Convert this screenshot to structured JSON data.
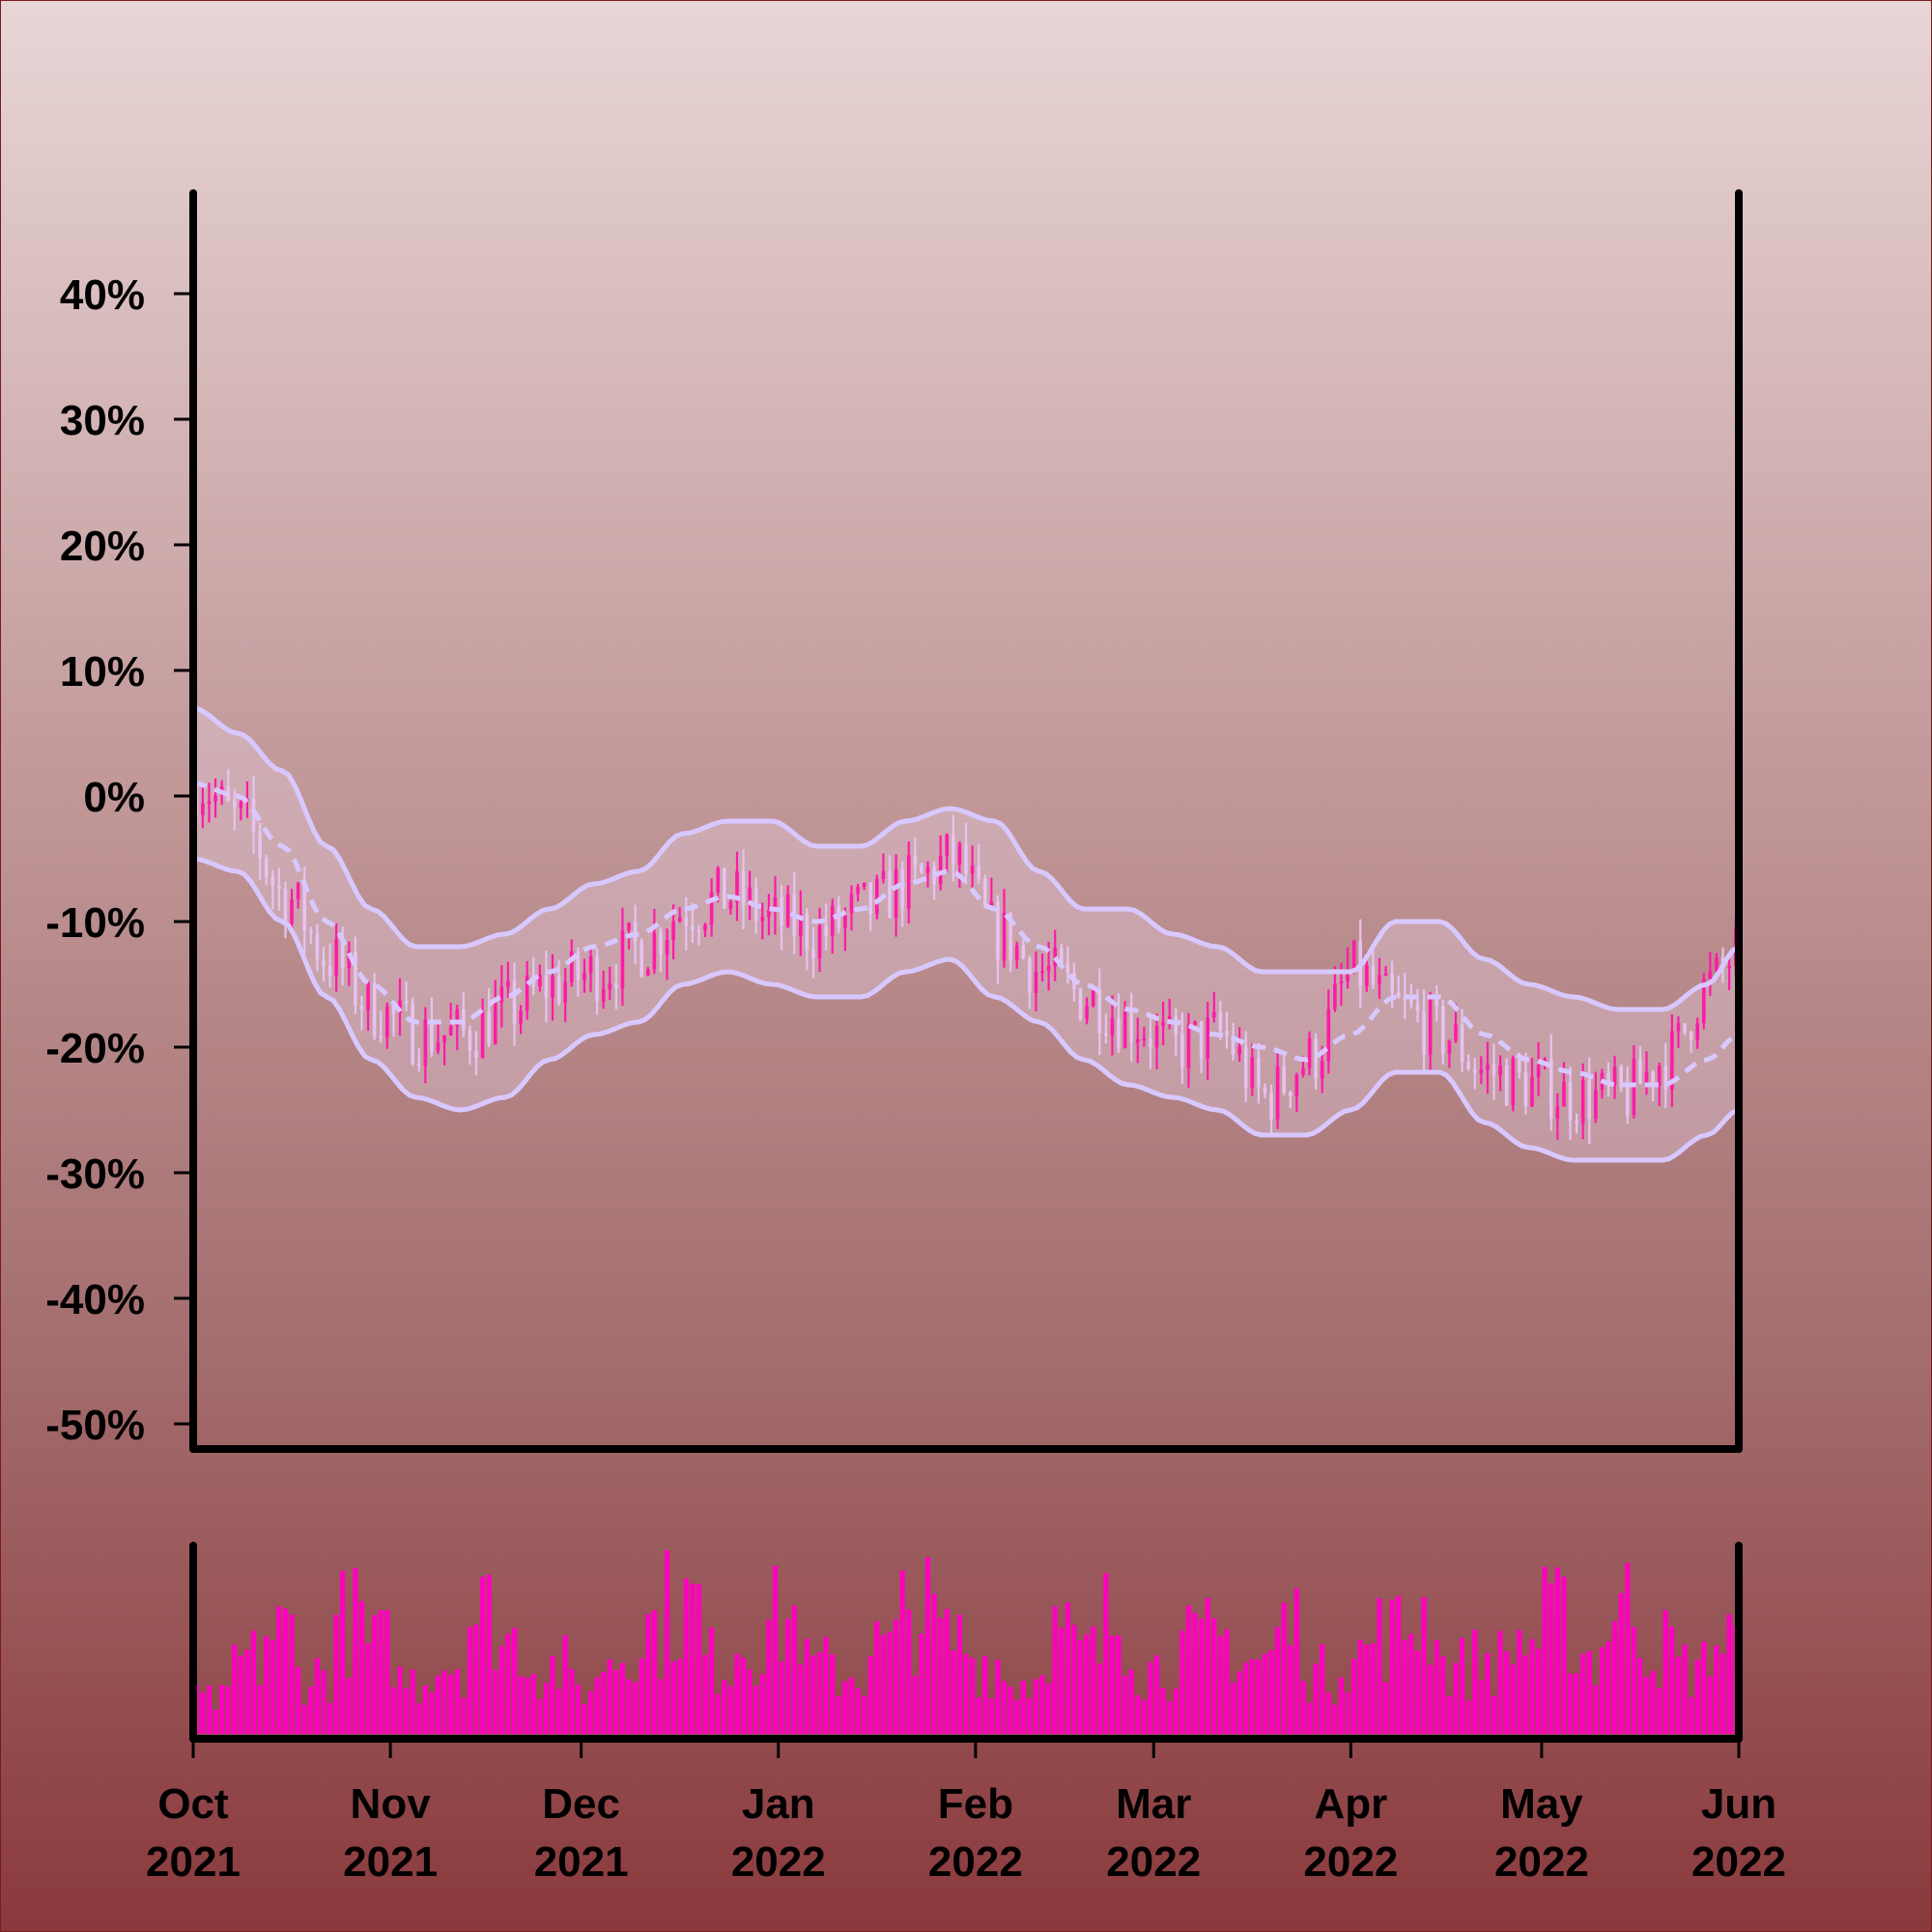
{
  "chart_data": {
    "type": "candlestick",
    "title": "",
    "xlabel": "",
    "ylabel": "",
    "y_unit": "%",
    "ylim": [
      -52,
      48
    ],
    "y_ticks": [
      40,
      30,
      20,
      10,
      0,
      -10,
      -20,
      -30,
      -40,
      -50
    ],
    "y_tick_labels": [
      "40%",
      "30%",
      "20%",
      "10%",
      "0%",
      "-10%",
      "-20%",
      "-30%",
      "-40%",
      "-50%"
    ],
    "x_range": [
      "2021-10-01",
      "2022-06-01"
    ],
    "x_ticks": [
      {
        "date": "2021-10-01",
        "month": "Oct",
        "year": "2021"
      },
      {
        "date": "2021-11-01",
        "month": "Nov",
        "year": "2021"
      },
      {
        "date": "2021-12-01",
        "month": "Dec",
        "year": "2021"
      },
      {
        "date": "2022-01-01",
        "month": "Jan",
        "year": "2022"
      },
      {
        "date": "2022-02-01",
        "month": "Feb",
        "year": "2022"
      },
      {
        "date": "2022-03-01",
        "month": "Mar",
        "year": "2022"
      },
      {
        "date": "2022-04-01",
        "month": "Apr",
        "year": "2022"
      },
      {
        "date": "2022-05-01",
        "month": "May",
        "year": "2022"
      },
      {
        "date": "2022-06-01",
        "month": "Jun",
        "year": "2022"
      }
    ],
    "grid": false,
    "legend": "none",
    "colors": {
      "up_candle": "#ff1aa8",
      "down_candle": "#e6c3f0",
      "bollinger_band": "#d8c8ff",
      "band_fill": "#e8d0e6",
      "volume": "#ff00c0",
      "axis": "#000000"
    },
    "series": [
      {
        "type": "price_close_pct",
        "points": [
          [
            "2021-10-01",
            1
          ],
          [
            "2021-10-08",
            -2
          ],
          [
            "2021-10-15",
            -8
          ],
          [
            "2021-10-22",
            -13
          ],
          [
            "2021-10-29",
            -17
          ],
          [
            "2021-11-05",
            -19
          ],
          [
            "2021-11-12",
            -19
          ],
          [
            "2021-11-19",
            -17
          ],
          [
            "2021-11-26",
            -15
          ],
          [
            "2021-12-03",
            -14
          ],
          [
            "2021-12-10",
            -12
          ],
          [
            "2021-12-17",
            -9
          ],
          [
            "2021-12-24",
            -8
          ],
          [
            "2021-12-31",
            -10
          ],
          [
            "2022-01-07",
            -11
          ],
          [
            "2022-01-14",
            -9
          ],
          [
            "2022-01-21",
            -7
          ],
          [
            "2022-01-28",
            -5
          ],
          [
            "2022-02-04",
            -11
          ],
          [
            "2022-02-11",
            -14
          ],
          [
            "2022-02-18",
            -16
          ],
          [
            "2022-02-25",
            -18
          ],
          [
            "2022-03-04",
            -20
          ],
          [
            "2022-03-11",
            -19
          ],
          [
            "2022-03-18",
            -24
          ],
          [
            "2022-03-25",
            -21
          ],
          [
            "2022-04-01",
            -14
          ],
          [
            "2022-04-08",
            -17
          ],
          [
            "2022-04-15",
            -19
          ],
          [
            "2022-04-22",
            -22
          ],
          [
            "2022-04-29",
            -23
          ],
          [
            "2022-05-06",
            -24
          ],
          [
            "2022-05-13",
            -24
          ],
          [
            "2022-05-20",
            -21
          ],
          [
            "2022-05-27",
            -15
          ],
          [
            "2022-06-01",
            -12
          ]
        ]
      },
      {
        "type": "bollinger_middle",
        "points": [
          [
            "2021-10-01",
            1
          ],
          [
            "2021-10-08",
            0
          ],
          [
            "2021-10-15",
            -4
          ],
          [
            "2021-10-22",
            -10
          ],
          [
            "2021-10-29",
            -15
          ],
          [
            "2021-11-05",
            -18
          ],
          [
            "2021-11-12",
            -18
          ],
          [
            "2021-11-19",
            -16
          ],
          [
            "2021-11-26",
            -14
          ],
          [
            "2021-12-03",
            -12
          ],
          [
            "2021-12-10",
            -11
          ],
          [
            "2021-12-17",
            -9
          ],
          [
            "2021-12-24",
            -8
          ],
          [
            "2021-12-31",
            -9
          ],
          [
            "2022-01-07",
            -10
          ],
          [
            "2022-01-14",
            -9
          ],
          [
            "2022-01-21",
            -7
          ],
          [
            "2022-01-28",
            -6
          ],
          [
            "2022-02-04",
            -9
          ],
          [
            "2022-02-11",
            -12
          ],
          [
            "2022-02-18",
            -15
          ],
          [
            "2022-02-25",
            -17
          ],
          [
            "2022-03-04",
            -18
          ],
          [
            "2022-03-11",
            -19
          ],
          [
            "2022-03-18",
            -20
          ],
          [
            "2022-03-25",
            -21
          ],
          [
            "2022-04-01",
            -19
          ],
          [
            "2022-04-08",
            -16
          ],
          [
            "2022-04-15",
            -16
          ],
          [
            "2022-04-22",
            -19
          ],
          [
            "2022-04-29",
            -21
          ],
          [
            "2022-05-06",
            -22
          ],
          [
            "2022-05-13",
            -23
          ],
          [
            "2022-05-20",
            -23
          ],
          [
            "2022-05-27",
            -21
          ],
          [
            "2022-06-01",
            -19
          ]
        ]
      },
      {
        "type": "bollinger_upper",
        "points": [
          [
            "2021-10-01",
            7
          ],
          [
            "2021-10-08",
            5
          ],
          [
            "2021-10-15",
            2
          ],
          [
            "2021-10-22",
            -4
          ],
          [
            "2021-10-29",
            -9
          ],
          [
            "2021-11-05",
            -12
          ],
          [
            "2021-11-12",
            -12
          ],
          [
            "2021-11-19",
            -11
          ],
          [
            "2021-11-26",
            -9
          ],
          [
            "2021-12-03",
            -7
          ],
          [
            "2021-12-10",
            -6
          ],
          [
            "2021-12-17",
            -3
          ],
          [
            "2021-12-24",
            -2
          ],
          [
            "2021-12-31",
            -2
          ],
          [
            "2022-01-07",
            -4
          ],
          [
            "2022-01-14",
            -4
          ],
          [
            "2022-01-21",
            -2
          ],
          [
            "2022-01-28",
            -1
          ],
          [
            "2022-02-04",
            -2
          ],
          [
            "2022-02-11",
            -6
          ],
          [
            "2022-02-18",
            -9
          ],
          [
            "2022-02-25",
            -9
          ],
          [
            "2022-03-04",
            -11
          ],
          [
            "2022-03-11",
            -12
          ],
          [
            "2022-03-18",
            -14
          ],
          [
            "2022-03-25",
            -14
          ],
          [
            "2022-04-01",
            -14
          ],
          [
            "2022-04-08",
            -10
          ],
          [
            "2022-04-15",
            -10
          ],
          [
            "2022-04-22",
            -13
          ],
          [
            "2022-04-29",
            -15
          ],
          [
            "2022-05-06",
            -16
          ],
          [
            "2022-05-13",
            -17
          ],
          [
            "2022-05-20",
            -17
          ],
          [
            "2022-05-27",
            -15
          ],
          [
            "2022-06-01",
            -12
          ]
        ]
      },
      {
        "type": "bollinger_lower",
        "points": [
          [
            "2021-10-01",
            -5
          ],
          [
            "2021-10-08",
            -6
          ],
          [
            "2021-10-15",
            -10
          ],
          [
            "2021-10-22",
            -16
          ],
          [
            "2021-10-29",
            -21
          ],
          [
            "2021-11-05",
            -24
          ],
          [
            "2021-11-12",
            -25
          ],
          [
            "2021-11-19",
            -24
          ],
          [
            "2021-11-26",
            -21
          ],
          [
            "2021-12-03",
            -19
          ],
          [
            "2021-12-10",
            -18
          ],
          [
            "2021-12-17",
            -15
          ],
          [
            "2021-12-24",
            -14
          ],
          [
            "2021-12-31",
            -15
          ],
          [
            "2022-01-07",
            -16
          ],
          [
            "2022-01-14",
            -16
          ],
          [
            "2022-01-21",
            -14
          ],
          [
            "2022-01-28",
            -13
          ],
          [
            "2022-02-04",
            -16
          ],
          [
            "2022-02-11",
            -18
          ],
          [
            "2022-02-18",
            -21
          ],
          [
            "2022-02-25",
            -23
          ],
          [
            "2022-03-04",
            -24
          ],
          [
            "2022-03-11",
            -25
          ],
          [
            "2022-03-18",
            -27
          ],
          [
            "2022-03-25",
            -27
          ],
          [
            "2022-04-01",
            -25
          ],
          [
            "2022-04-08",
            -22
          ],
          [
            "2022-04-15",
            -22
          ],
          [
            "2022-04-22",
            -26
          ],
          [
            "2022-04-29",
            -28
          ],
          [
            "2022-05-06",
            -29
          ],
          [
            "2022-05-13",
            -29
          ],
          [
            "2022-05-20",
            -29
          ],
          [
            "2022-05-27",
            -27
          ],
          [
            "2022-06-01",
            -25
          ]
        ]
      }
    ],
    "volume_profile": [
      0.25,
      0.55,
      0.75,
      0.45,
      0.85,
      0.65,
      0.4,
      0.55,
      0.9,
      0.7,
      0.5,
      0.35,
      0.6,
      0.8,
      0.95,
      0.55,
      0.7,
      0.85,
      0.5,
      0.45,
      0.65,
      0.9,
      0.7,
      0.55,
      0.4,
      0.75,
      0.6,
      0.85,
      0.5,
      0.65,
      0.7,
      0.55,
      0.8,
      0.45,
      0.6,
      0.75,
      0.9,
      0.5,
      0.55,
      0.7,
      0.85,
      0.6,
      0.95,
      0.65,
      0.5,
      0.7
    ]
  }
}
